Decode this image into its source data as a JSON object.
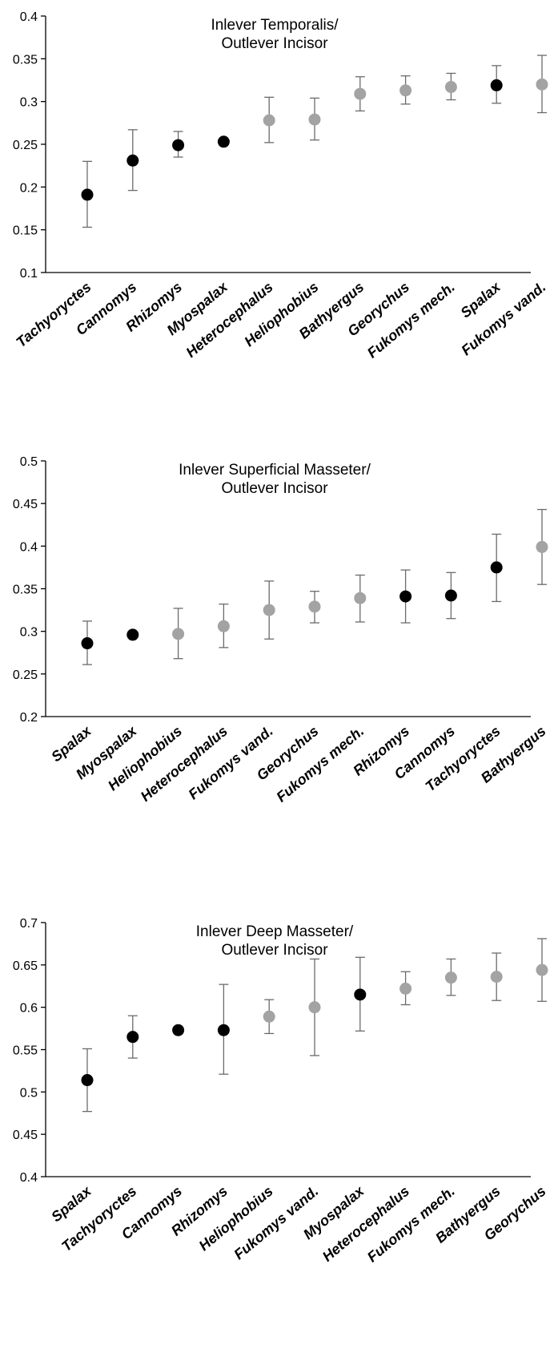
{
  "colors": {
    "black_group": "#000000",
    "gray_group": "#a3a3a3",
    "error_bar": "#6b6b6b"
  },
  "chart_data": [
    {
      "type": "scatter",
      "title_lines": [
        "Inlever Temporalis/",
        "Outlever Incisor"
      ],
      "xlabel": "",
      "ylabel": "",
      "ylim": [
        0.1,
        0.4
      ],
      "yticks": [
        "0.1",
        "0.15",
        "0.2",
        "0.25",
        "0.3",
        "0.35",
        "0.4"
      ],
      "grid": false,
      "categories": [
        "Tachyoryctes",
        "Cannomys",
        "Rhizomys",
        "Myospalax",
        "Heterocephalus",
        "Heliophobius",
        "Bathyergus",
        "Georychus",
        "Fukomys mech.",
        "Spalax",
        "Fukomys vand."
      ],
      "values": [
        0.191,
        0.231,
        0.249,
        0.253,
        0.278,
        0.279,
        0.309,
        0.313,
        0.317,
        0.319,
        0.32
      ],
      "err_low": [
        0.153,
        0.196,
        0.235,
        null,
        0.252,
        0.255,
        0.289,
        0.297,
        0.302,
        0.298,
        0.287
      ],
      "err_high": [
        0.23,
        0.267,
        0.265,
        null,
        0.305,
        0.304,
        0.329,
        0.33,
        0.333,
        0.342,
        0.354
      ],
      "point_color": [
        "black",
        "black",
        "black",
        "black",
        "gray",
        "gray",
        "gray",
        "gray",
        "gray",
        "black",
        "gray"
      ]
    },
    {
      "type": "scatter",
      "title_lines": [
        "Inlever Superficial Masseter/",
        "Outlever Incisor"
      ],
      "xlabel": "",
      "ylabel": "",
      "ylim": [
        0.2,
        0.5
      ],
      "yticks": [
        "0.2",
        "0.25",
        "0.3",
        "0.35",
        "0.4",
        "0.45",
        "0.5"
      ],
      "grid": false,
      "categories": [
        "Spalax",
        "Myospalax",
        "Heliophobius",
        "Heterocephalus",
        "Fukomys vand.",
        "Georychus",
        "Fukomys mech.",
        "Rhizomys",
        "Cannomys",
        "Tachyoryctes",
        "Bathyergus"
      ],
      "values": [
        0.286,
        0.296,
        0.297,
        0.306,
        0.325,
        0.329,
        0.339,
        0.341,
        0.342,
        0.375,
        0.399
      ],
      "err_low": [
        0.261,
        null,
        0.268,
        0.281,
        0.291,
        0.31,
        0.311,
        0.31,
        0.315,
        0.335,
        0.355
      ],
      "err_high": [
        0.312,
        null,
        0.327,
        0.332,
        0.359,
        0.347,
        0.366,
        0.372,
        0.369,
        0.414,
        0.443
      ],
      "point_color": [
        "black",
        "black",
        "gray",
        "gray",
        "gray",
        "gray",
        "gray",
        "black",
        "black",
        "black",
        "gray"
      ]
    },
    {
      "type": "scatter",
      "title_lines": [
        "Inlever Deep Masseter/",
        "Outlever Incisor"
      ],
      "xlabel": "",
      "ylabel": "",
      "ylim": [
        0.4,
        0.7
      ],
      "yticks": [
        "0.4",
        "0.45",
        "0.5",
        "0.55",
        "0.6",
        "0.65",
        "0.7"
      ],
      "grid": false,
      "categories": [
        "Spalax",
        "Tachyoryctes",
        "Cannomys",
        "Rhizomys",
        "Heliophobius",
        "Fukomys vand.",
        "Myospalax",
        "Heterocephalus",
        "Fukomys mech.",
        "Bathyergus",
        "Georychus"
      ],
      "values": [
        0.514,
        0.565,
        0.573,
        0.573,
        0.589,
        0.6,
        0.615,
        0.622,
        0.635,
        0.636,
        0.644
      ],
      "err_low": [
        0.477,
        0.54,
        null,
        0.521,
        0.569,
        0.543,
        0.572,
        0.603,
        0.614,
        0.608,
        0.607
      ],
      "err_high": [
        0.551,
        0.59,
        null,
        0.627,
        0.609,
        0.657,
        0.659,
        0.642,
        0.657,
        0.664,
        0.681
      ],
      "point_color": [
        "black",
        "black",
        "black",
        "black",
        "gray",
        "gray",
        "black",
        "gray",
        "gray",
        "gray",
        "gray"
      ]
    }
  ]
}
